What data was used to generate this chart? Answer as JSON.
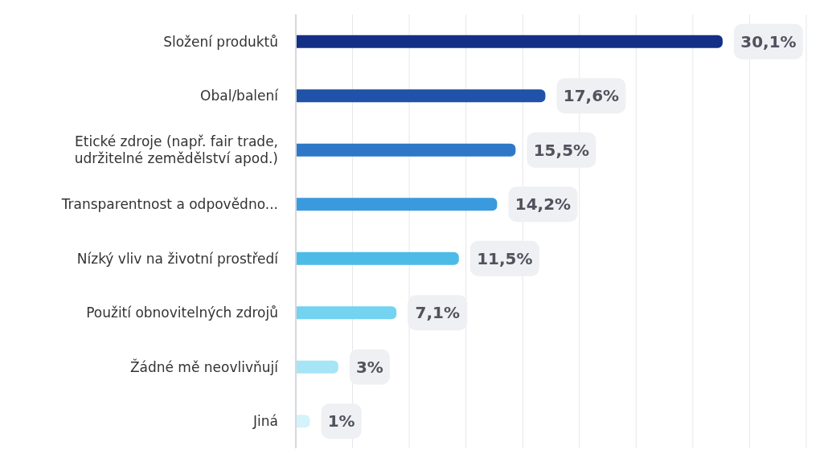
{
  "chart_data": {
    "type": "bar",
    "orientation": "horizontal",
    "categories": [
      "Složení produktů",
      "Obal/balení",
      "Etické zdroje (např. fair trade, udržitelné zemědělství apod.)",
      "Transparentnost a odpovědno...",
      "Nízký vliv na životní prostředí",
      "Použití obnovitelných zdrojů",
      "Žádné mě neovlivňují",
      "Jiná"
    ],
    "values": [
      30.1,
      17.6,
      15.5,
      14.2,
      11.5,
      7.1,
      3,
      1
    ],
    "value_labels": [
      "30,1%",
      "17,6%",
      "15,5%",
      "14,2%",
      "11,5%",
      "7,1%",
      "3%",
      "1%"
    ],
    "colors": [
      "#142f86",
      "#1f52a8",
      "#2f78c8",
      "#3a9ade",
      "#4cbbe8",
      "#73d3f0",
      "#a6e5f6",
      "#d3f3fb"
    ],
    "xlim": [
      0,
      36
    ],
    "xticks": [
      {
        "value": 0,
        "label": null
      },
      {
        "value": 4,
        "label": null
      },
      {
        "value": 8,
        "label": null
      },
      {
        "value": 12,
        "label": null
      },
      {
        "value": 16,
        "label": null
      },
      {
        "value": 20,
        "label": null
      },
      {
        "value": 24,
        "label": null
      },
      {
        "value": 28,
        "label": null
      },
      {
        "value": 32,
        "label": null
      },
      {
        "value": 36,
        "label": null
      }
    ],
    "grid": "x"
  }
}
